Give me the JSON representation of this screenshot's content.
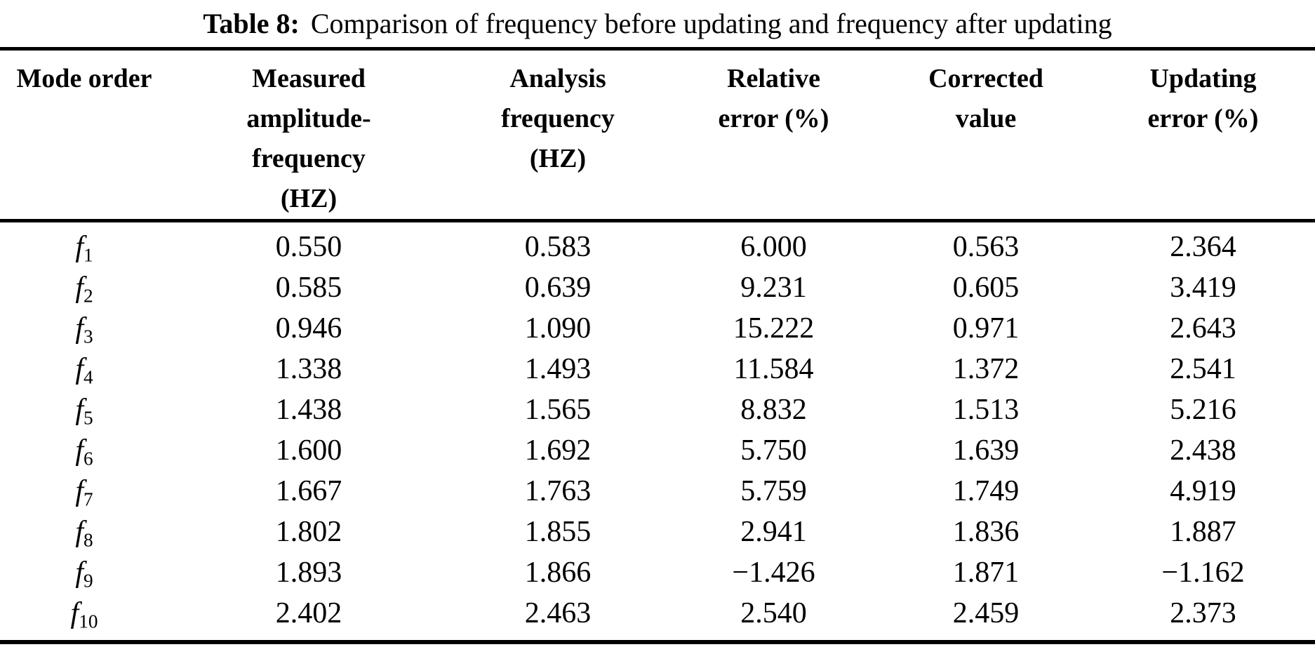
{
  "caption": {
    "label": "Table 8:",
    "text": "Comparison of frequency before updating and frequency after updating"
  },
  "colors": {
    "text": "#000000",
    "background": "#ffffff",
    "rule": "#000000"
  },
  "table": {
    "headers": [
      {
        "lines": [
          "Mode order"
        ]
      },
      {
        "lines": [
          "Measured",
          "amplitude-",
          "frequency",
          "(HZ)"
        ]
      },
      {
        "lines": [
          "Analysis",
          "frequency",
          "(HZ)"
        ]
      },
      {
        "lines": [
          "Relative",
          "error (%)"
        ]
      },
      {
        "lines": [
          "Corrected",
          "value"
        ]
      },
      {
        "lines": [
          "Updating",
          "error (%)"
        ]
      }
    ],
    "rows": [
      {
        "mode_letter": "f",
        "mode_sub": "1",
        "values": [
          "0.550",
          "0.583",
          "6.000",
          "0.563",
          "2.364"
        ]
      },
      {
        "mode_letter": "f",
        "mode_sub": "2",
        "values": [
          "0.585",
          "0.639",
          "9.231",
          "0.605",
          "3.419"
        ]
      },
      {
        "mode_letter": "f",
        "mode_sub": "3",
        "values": [
          "0.946",
          "1.090",
          "15.222",
          "0.971",
          "2.643"
        ]
      },
      {
        "mode_letter": "f",
        "mode_sub": "4",
        "values": [
          "1.338",
          "1.493",
          "11.584",
          "1.372",
          "2.541"
        ]
      },
      {
        "mode_letter": "f",
        "mode_sub": "5",
        "values": [
          "1.438",
          "1.565",
          "8.832",
          "1.513",
          "5.216"
        ]
      },
      {
        "mode_letter": "f",
        "mode_sub": "6",
        "values": [
          "1.600",
          "1.692",
          "5.750",
          "1.639",
          "2.438"
        ]
      },
      {
        "mode_letter": "f",
        "mode_sub": "7",
        "values": [
          "1.667",
          "1.763",
          "5.759",
          "1.749",
          "4.919"
        ]
      },
      {
        "mode_letter": "f",
        "mode_sub": "8",
        "values": [
          "1.802",
          "1.855",
          "2.941",
          "1.836",
          "1.887"
        ]
      },
      {
        "mode_letter": "f",
        "mode_sub": "9",
        "values": [
          "1.893",
          "1.866",
          "−1.426",
          "1.871",
          "−1.162"
        ]
      },
      {
        "mode_letter": "f",
        "mode_sub": "10",
        "values": [
          "2.402",
          "2.463",
          "2.540",
          "2.459",
          "2.373"
        ]
      }
    ]
  }
}
